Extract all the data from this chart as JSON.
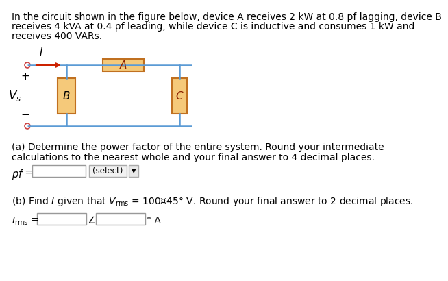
{
  "bg_color": "#ffffff",
  "text_color": "#000000",
  "circuit_line_color": "#5b9bd5",
  "device_fill": "#f5c97a",
  "device_border": "#c07020",
  "title_line1": "In the circuit shown in the figure below, device A receives 2 kW at 0.8 pf lagging, device B",
  "title_line2": "receives 4 kVA at 0.4 pf leading, while device C is inductive and consumes 1 kW and",
  "title_line3": "receives 400 VARs.",
  "part_a_line1": "(a) Determine the power factor of the entire system. Round your intermediate",
  "part_a_line2": "calculations to the nearest whole and your final answer to 4 decimal places.",
  "part_b_line": "(b) Find $I$ given that $V_{\\mathrm{rms}}$ = 100⑐45° V. Round your final answer to 2 decimal places.",
  "font_size": 10.0
}
